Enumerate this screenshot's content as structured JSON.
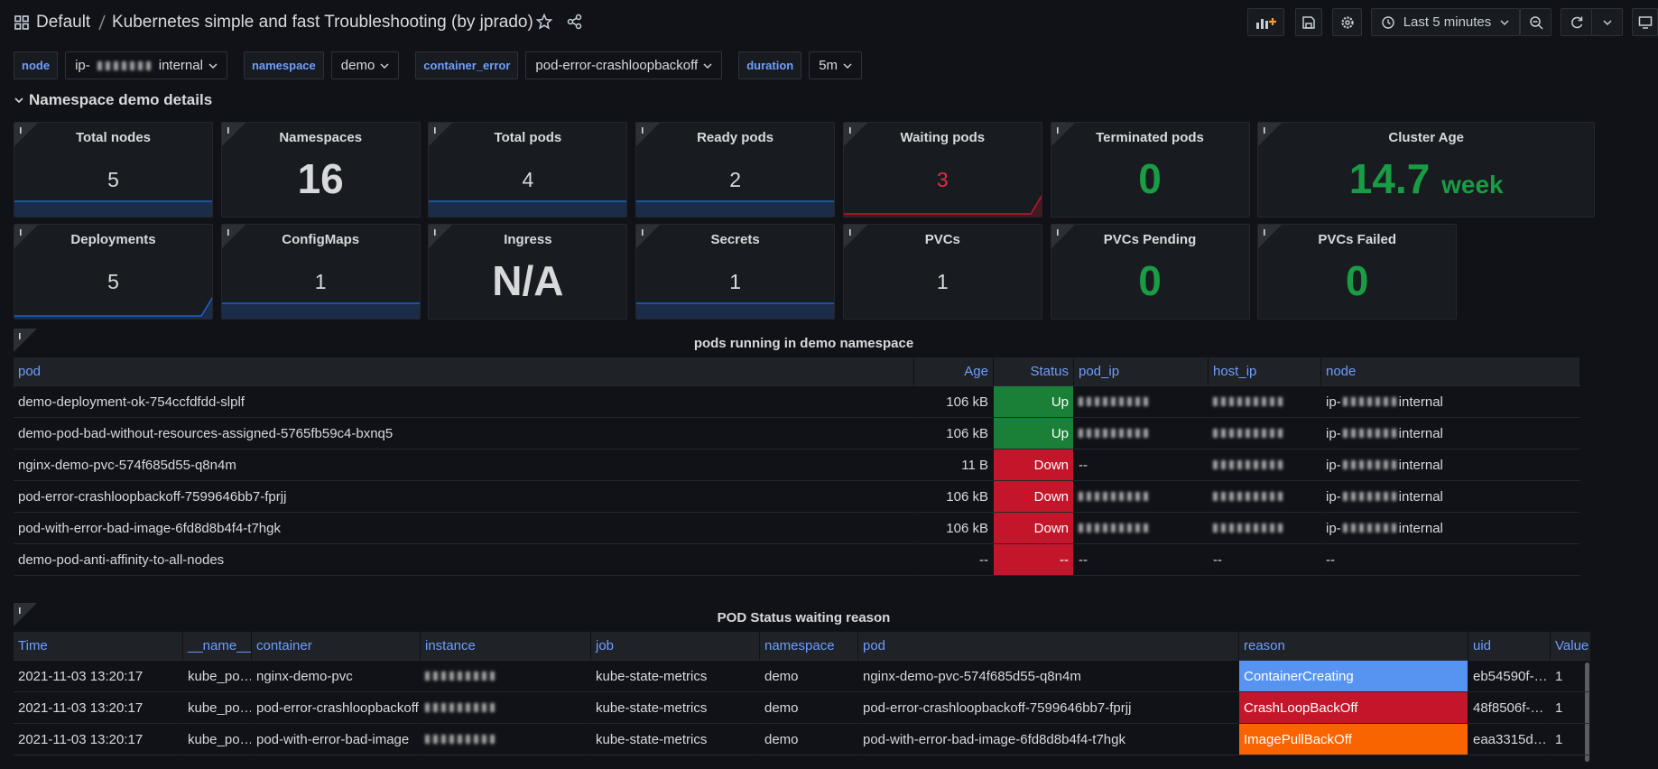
{
  "header": {
    "breadcrumb": [
      "Default",
      "Kubernetes simple and fast Troubleshooting (by jprado)"
    ],
    "time_range": "Last 5 minutes"
  },
  "variables": [
    {
      "label": "node",
      "value": {
        "start": "ip-",
        "end": "internal"
      }
    },
    {
      "label": "namespace",
      "value": "demo"
    },
    {
      "label": "container_error",
      "value": "pod-error-crashloopbackoff"
    },
    {
      "label": "duration",
      "value": "5m"
    }
  ],
  "section": "Namespace demo details",
  "stats": [
    {
      "title": "Total nodes",
      "value": 5,
      "color": "#d8d9da",
      "sparkline": {
        "color": "#1f60c4",
        "shape": "flat"
      }
    },
    {
      "title": "Namespaces",
      "value": 16,
      "color": "#d8d9da",
      "sparkline": null
    },
    {
      "title": "Total pods",
      "value": 4,
      "color": "#d8d9da",
      "sparkline": {
        "color": "#1f60c4",
        "shape": "flat"
      }
    },
    {
      "title": "Ready pods",
      "value": 2,
      "color": "#d8d9da",
      "sparkline": {
        "color": "#1f60c4",
        "shape": "flat"
      }
    },
    {
      "title": "Waiting pods",
      "value": 3,
      "color": "#e02f44",
      "sparkline": {
        "color": "#c4162a",
        "shape": "rise"
      }
    },
    {
      "title": "Terminated pods",
      "value": 0,
      "color": "#1a9c45",
      "sparkline": null
    },
    {
      "title": "Cluster Age",
      "value": 14.7,
      "unit": "week",
      "color": "#1a9c45",
      "sparkline": null
    },
    {
      "title": "Deployments",
      "value": 5,
      "color": "#d8d9da",
      "sparkline": {
        "color": "#1f60c4",
        "shape": "rise"
      }
    },
    {
      "title": "ConfigMaps",
      "value": 1,
      "color": "#d8d9da",
      "sparkline": {
        "color": "#1f60c4",
        "shape": "flat"
      }
    },
    {
      "title": "Ingress",
      "value": "N/A",
      "color": "#d8d9da",
      "sparkline": null
    },
    {
      "title": "Secrets",
      "value": 1,
      "color": "#d8d9da",
      "sparkline": {
        "color": "#1f60c4",
        "shape": "flat"
      }
    },
    {
      "title": "PVCs",
      "value": 1,
      "color": "#d8d9da",
      "sparkline": null
    },
    {
      "title": "PVCs Pending",
      "value": 0,
      "color": "#1a9c45",
      "sparkline": null
    },
    {
      "title": "PVCs Failed",
      "value": 0,
      "color": "#1a9c45",
      "sparkline": null
    }
  ],
  "pods_table": {
    "title": "pods running in demo  namespace",
    "columns": [
      "pod",
      "Age",
      "Status",
      "pod_ip",
      "host_ip",
      "node"
    ],
    "rows": [
      {
        "pod": "demo-deployment-ok-754ccfdfdd-slplf",
        "age": "106 kB",
        "status": "Up",
        "status_color": "#1a7f37",
        "pod_ip": null,
        "host_ip": null,
        "node": {
          "start": "ip-",
          "end": "internal"
        }
      },
      {
        "pod": "demo-pod-bad-without-resources-assigned-5765fb59c4-bxnq5",
        "age": "106 kB",
        "status": "Up",
        "status_color": "#1a7f37",
        "pod_ip": null,
        "host_ip": null,
        "node": {
          "start": "ip-",
          "end": "internal"
        }
      },
      {
        "pod": "nginx-demo-pvc-574f685d55-q8n4m",
        "age": "11 B",
        "status": "Down",
        "status_color": "#c4162a",
        "pod_ip": "--",
        "host_ip": null,
        "node": {
          "start": "ip-",
          "end": "internal"
        }
      },
      {
        "pod": "pod-error-crashloopbackoff-7599646bb7-fprjj",
        "age": "106 kB",
        "status": "Down",
        "status_color": "#c4162a",
        "pod_ip": null,
        "host_ip": null,
        "node": {
          "start": "ip-",
          "end": "internal"
        }
      },
      {
        "pod": "pod-with-error-bad-image-6fd8d8b4f4-t7hgk",
        "age": "106 kB",
        "status": "Down",
        "status_color": "#c4162a",
        "pod_ip": null,
        "host_ip": null,
        "node": {
          "start": "ip-",
          "end": "internal"
        }
      },
      {
        "pod": "demo-pod-anti-affinity-to-all-nodes",
        "age": "--",
        "status": "--",
        "status_color": "#c4162a",
        "pod_ip": "--",
        "host_ip": "--",
        "node": "--"
      }
    ]
  },
  "waiting_table": {
    "title": "POD Status waiting reason",
    "columns": [
      "Time",
      "__name__",
      "container",
      "instance",
      "job",
      "namespace",
      "pod",
      "reason",
      "uid",
      "Value"
    ],
    "rows": [
      {
        "time": "2021-11-03 13:20:17",
        "name": "kube_po…",
        "container": "nginx-demo-pvc",
        "instance": null,
        "job": "kube-state-metrics",
        "namespace": "demo",
        "pod": "nginx-demo-pvc-574f685d55-q8n4m",
        "reason": "ContainerCreating",
        "reason_color": "#5794f2",
        "uid": "eb54590f-…",
        "value": 1
      },
      {
        "time": "2021-11-03 13:20:17",
        "name": "kube_po…",
        "container": "pod-error-crashloopbackoff",
        "instance": null,
        "job": "kube-state-metrics",
        "namespace": "demo",
        "pod": "pod-error-crashloopbackoff-7599646bb7-fprjj",
        "reason": "CrashLoopBackOff",
        "reason_color": "#c4162a",
        "uid": "48f8506f-…",
        "value": 1
      },
      {
        "time": "2021-11-03 13:20:17",
        "name": "kube_po…",
        "container": "pod-with-error-bad-image",
        "instance": null,
        "job": "kube-state-metrics",
        "namespace": "demo",
        "pod": "pod-with-error-bad-image-6fd8d8b4f4-t7hgk",
        "reason": "ImagePullBackOff",
        "reason_color": "#fa6400",
        "uid": "eaa3315d…",
        "value": 1
      }
    ]
  }
}
